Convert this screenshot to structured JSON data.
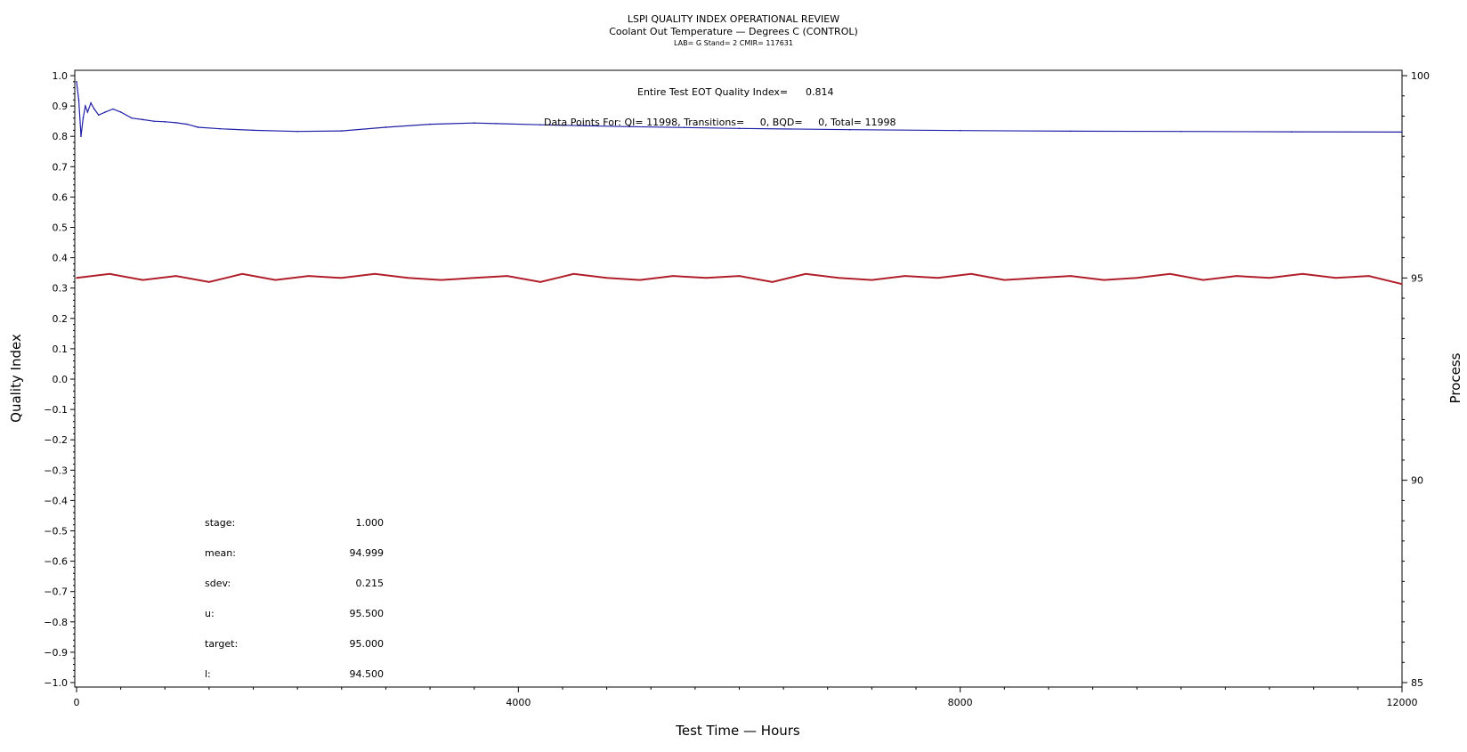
{
  "chart_data": {
    "type": "line",
    "title": "LSPI QUALITY INDEX OPERATIONAL REVIEW",
    "subtitle": "Coolant Out Temperature — Degrees C (CONTROL)",
    "subtitle2": "LAB= G Stand= 2 CMIR= 117631",
    "xlabel": "Test Time — Hours",
    "ylabel_left": "Quality Index",
    "ylabel_right": "Process",
    "xlim": [
      0,
      12000
    ],
    "ylim_left": [
      -1.0,
      1.0
    ],
    "ylim_right": [
      85,
      100
    ],
    "x_ticks": [
      0,
      4000,
      8000,
      12000
    ],
    "y_left_ticks": [
      "1.0",
      "0.9",
      "0.8",
      "0.7",
      "0.6",
      "0.5",
      "0.4",
      "0.3",
      "0.2",
      "0.1",
      "0.0",
      "−0.1",
      "−0.2",
      "−0.3",
      "−0.4",
      "−0.5",
      "−0.6",
      "−0.7",
      "−0.8",
      "−0.9",
      "−1.0"
    ],
    "y_right_ticks": [
      100,
      95,
      90,
      85
    ],
    "grid": false,
    "annotations": {
      "eot_label": "Entire Test EOT Quality Index=",
      "eot_value": "0.814",
      "data_points": "Data Points For: QI= 11998, Transitions=     0, BQD=     0, Total= 11998"
    },
    "stats": [
      {
        "label": "stage:",
        "value": "1.000"
      },
      {
        "label": "mean:",
        "value": "94.999"
      },
      {
        "label": "sdev:",
        "value": "0.215"
      },
      {
        "label": "u:",
        "value": "95.500"
      },
      {
        "label": "target:",
        "value": "95.000"
      },
      {
        "label": "l:",
        "value": "94.500"
      }
    ],
    "series": [
      {
        "axis": "left",
        "color": "#1f1fa8",
        "x": [
          0,
          20,
          40,
          60,
          80,
          100,
          130,
          160,
          200,
          260,
          330,
          400,
          500,
          600,
          700,
          800,
          900,
          1000,
          1100,
          1300,
          1600,
          2000,
          2400,
          2800,
          3200,
          3600,
          3800,
          4200,
          4600,
          5000,
          5500,
          6000,
          7000,
          8000,
          9000,
          10000,
          11000,
          12000
        ],
        "values": [
          0.98,
          0.92,
          0.8,
          0.86,
          0.9,
          0.88,
          0.91,
          0.89,
          0.87,
          0.88,
          0.89,
          0.88,
          0.86,
          0.855,
          0.85,
          0.848,
          0.845,
          0.84,
          0.83,
          0.825,
          0.82,
          0.816,
          0.818,
          0.83,
          0.84,
          0.844,
          0.842,
          0.838,
          0.835,
          0.832,
          0.829,
          0.826,
          0.822,
          0.819,
          0.817,
          0.816,
          0.815,
          0.814
        ]
      },
      {
        "axis": "right",
        "color": "#b01e2a",
        "x": [
          0,
          300,
          600,
          900,
          1200,
          1500,
          1800,
          2100,
          2400,
          2700,
          3000,
          3300,
          3600,
          3900,
          4200,
          4500,
          4800,
          5100,
          5400,
          5700,
          6000,
          6300,
          6600,
          6900,
          7200,
          7500,
          7800,
          8100,
          8400,
          8700,
          9000,
          9300,
          9600,
          9900,
          10200,
          10500,
          10800,
          11100,
          11400,
          11700,
          12000
        ],
        "values": [
          95.0,
          95.1,
          94.95,
          95.05,
          94.9,
          95.1,
          94.95,
          95.05,
          95.0,
          95.1,
          95.0,
          94.95,
          95.0,
          95.05,
          94.9,
          95.1,
          95.0,
          94.95,
          95.05,
          95.0,
          95.05,
          94.9,
          95.1,
          95.0,
          94.95,
          95.05,
          95.0,
          95.1,
          94.95,
          95.0,
          95.05,
          94.95,
          95.0,
          95.1,
          94.95,
          95.05,
          95.0,
          95.1,
          95.0,
          95.05,
          94.85
        ]
      }
    ]
  }
}
